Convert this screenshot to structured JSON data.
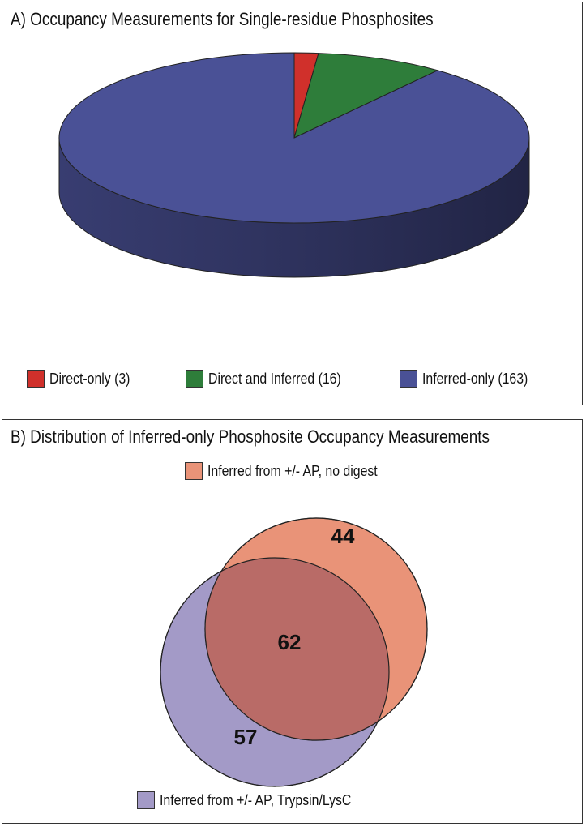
{
  "chart_data": [
    {
      "type": "pie",
      "title": "A) Occupancy Measurements for Single-residue Phosphosites",
      "categories": [
        "Direct-only",
        "Direct and Inferred",
        "Inferred-only"
      ],
      "values": [
        3,
        16,
        163
      ],
      "colors": [
        "#d0302b",
        "#2e7d3a",
        "#4a5196"
      ],
      "legend": [
        {
          "label": "Direct-only (3)",
          "color": "#d0302b"
        },
        {
          "label": "Direct and Inferred (16)",
          "color": "#2e7d3a"
        },
        {
          "label": "Inferred-only (163)",
          "color": "#4a5196"
        }
      ],
      "legend_position": "bottom"
    },
    {
      "type": "venn",
      "title": "B) Distribution of Inferred-only Phosphosite Occupancy Measurements",
      "sets": [
        {
          "name": "Inferred from +/- AP, no digest",
          "color": "#e99378"
        },
        {
          "name": "Inferred from +/- AP, Trypsin/LysC",
          "color": "#a39ac7"
        }
      ],
      "regions": {
        "only_set_1": 44,
        "both": 62,
        "only_set_2": 57
      },
      "overlap_color": "#b96b67"
    }
  ]
}
